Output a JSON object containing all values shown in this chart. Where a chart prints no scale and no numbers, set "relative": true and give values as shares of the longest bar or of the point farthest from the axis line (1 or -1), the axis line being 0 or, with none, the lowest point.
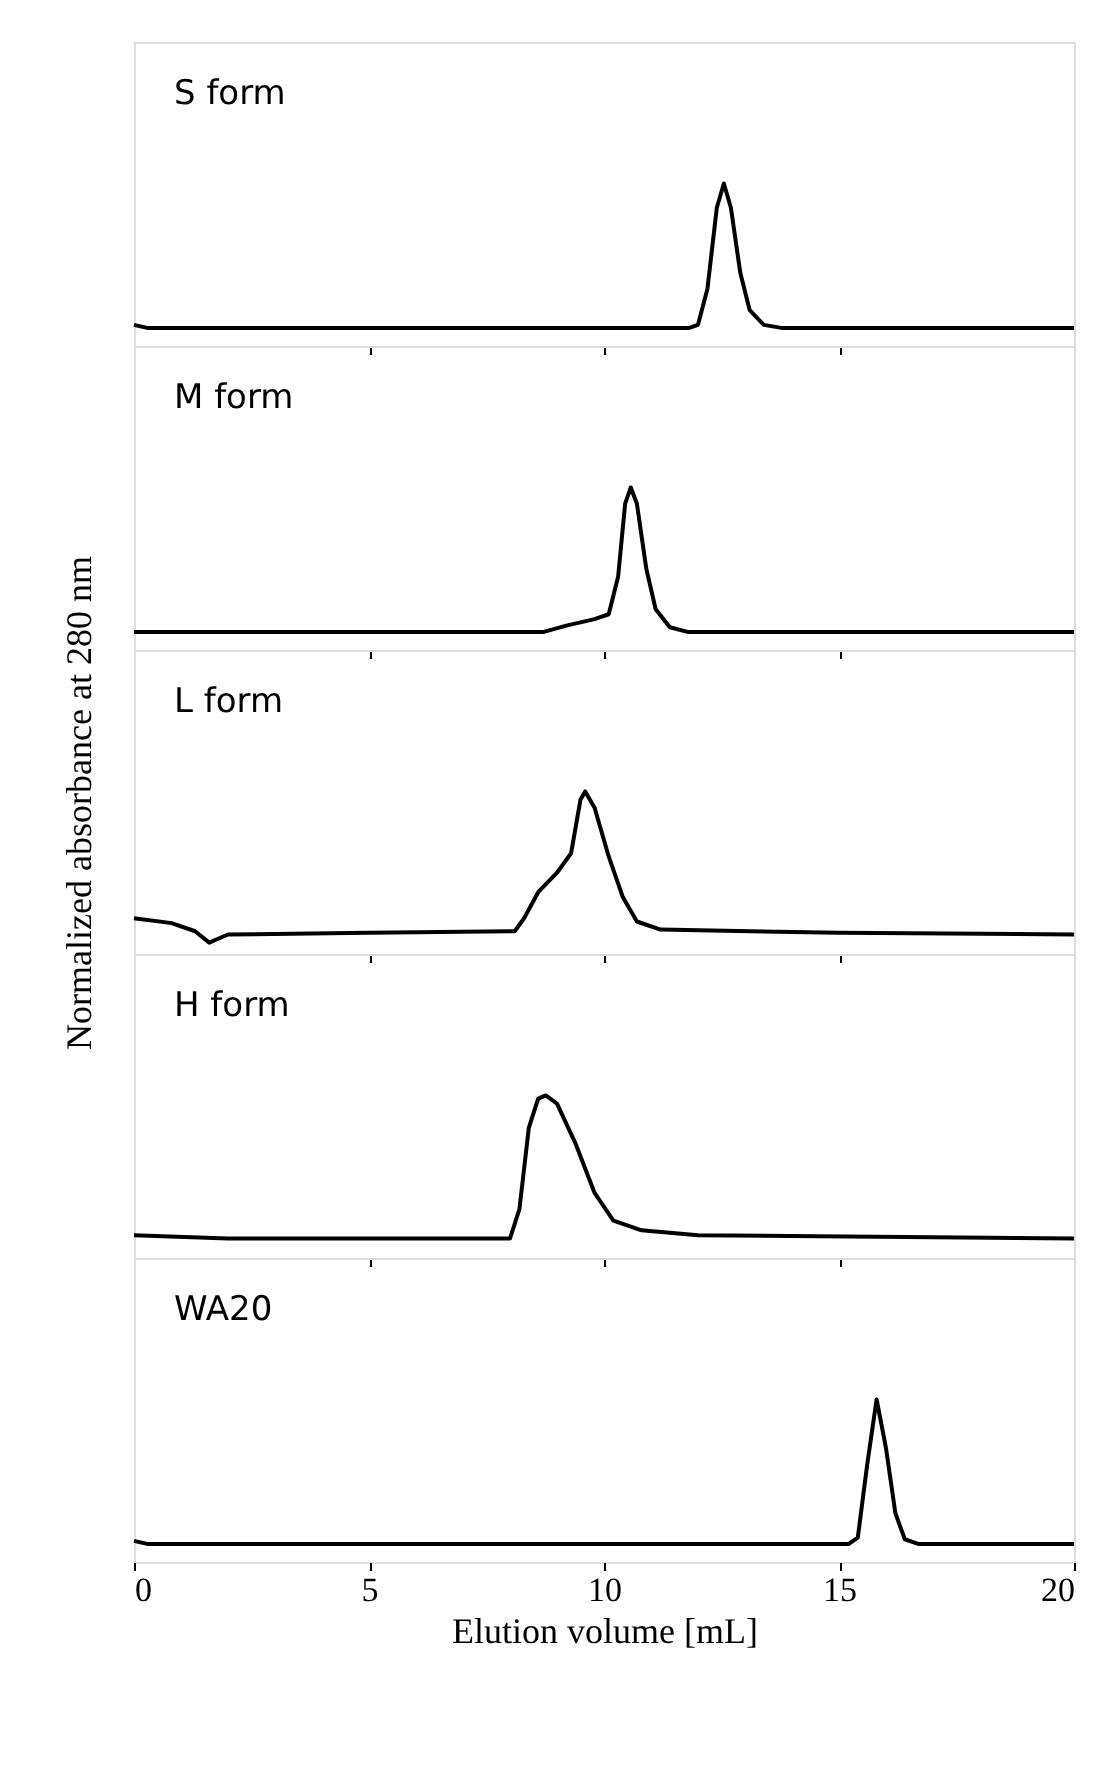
{
  "chart_data": [
    {
      "type": "line",
      "relative": true,
      "xlim": [
        0,
        20
      ],
      "xticks": [
        0,
        5,
        10,
        15,
        20
      ],
      "tick_labels": false,
      "annotations": [
        "S form"
      ],
      "series": [
        {
          "color": "#000000",
          "x": [
            0,
            0.3,
            5,
            10,
            11.8,
            12.0,
            12.2,
            12.4,
            12.55,
            12.7,
            12.9,
            13.1,
            13.4,
            13.8,
            15,
            20
          ],
          "values": [
            0.13,
            0.11,
            0.11,
            0.11,
            0.11,
            0.13,
            0.35,
            0.85,
            1,
            0.85,
            0.45,
            0.22,
            0.13,
            0.11,
            0.11,
            0.11
          ]
        }
      ]
    },
    {
      "type": "line",
      "relative": true,
      "xlim": [
        0,
        20
      ],
      "xticks": [
        0,
        5,
        10,
        15,
        20
      ],
      "tick_labels": false,
      "annotations": [
        "M form"
      ],
      "series": [
        {
          "color": "#000000",
          "x": [
            0,
            5,
            8.7,
            9.2,
            9.8,
            10.1,
            10.3,
            10.45,
            10.57,
            10.7,
            10.9,
            11.1,
            11.4,
            11.8,
            15,
            20
          ],
          "values": [
            0.11,
            0.11,
            0.11,
            0.15,
            0.19,
            0.22,
            0.45,
            0.9,
            1,
            0.9,
            0.5,
            0.25,
            0.14,
            0.11,
            0.11,
            0.11
          ]
        }
      ]
    },
    {
      "type": "line",
      "relative": true,
      "xlim": [
        0,
        20
      ],
      "xticks": [
        0,
        5,
        10,
        15,
        20
      ],
      "tick_labels": false,
      "ylabel": "Normalized absorbance at 280 nm",
      "annotations": [
        "L form"
      ],
      "series": [
        {
          "color": "#000000",
          "x": [
            0,
            0.8,
            1.3,
            1.6,
            2.0,
            5,
            8.1,
            8.3,
            8.6,
            9.0,
            9.3,
            9.5,
            9.6,
            9.8,
            10.1,
            10.4,
            10.7,
            11.2,
            15,
            20
          ],
          "values": [
            0.22,
            0.19,
            0.14,
            0.07,
            0.12,
            0.13,
            0.14,
            0.22,
            0.38,
            0.5,
            0.62,
            0.95,
            1,
            0.9,
            0.6,
            0.35,
            0.2,
            0.15,
            0.13,
            0.12
          ]
        }
      ]
    },
    {
      "type": "line",
      "relative": true,
      "xlim": [
        0,
        20
      ],
      "xticks": [
        0,
        5,
        10,
        15,
        20
      ],
      "tick_labels": false,
      "annotations": [
        "H form"
      ],
      "series": [
        {
          "color": "#000000",
          "x": [
            0,
            2,
            8.0,
            8.2,
            8.4,
            8.6,
            8.76,
            9.0,
            9.4,
            9.8,
            10.2,
            10.8,
            12,
            20
          ],
          "values": [
            0.14,
            0.12,
            0.12,
            0.3,
            0.8,
            0.98,
            1,
            0.95,
            0.7,
            0.4,
            0.23,
            0.17,
            0.14,
            0.12
          ]
        }
      ]
    },
    {
      "type": "line",
      "relative": true,
      "xlim": [
        0,
        20
      ],
      "xticks": [
        0,
        5,
        10,
        15,
        20
      ],
      "tick_labels": "x",
      "xlabel": "Elution volume [mL]",
      "annotations": [
        "WA20"
      ],
      "series": [
        {
          "color": "#000000",
          "x": [
            0,
            0.3,
            15.2,
            15.4,
            15.6,
            15.8,
            16.0,
            16.2,
            16.4,
            16.7,
            20
          ],
          "values": [
            0.13,
            0.11,
            0.11,
            0.15,
            0.6,
            1,
            0.7,
            0.3,
            0.14,
            0.11,
            0.11
          ]
        }
      ]
    }
  ]
}
